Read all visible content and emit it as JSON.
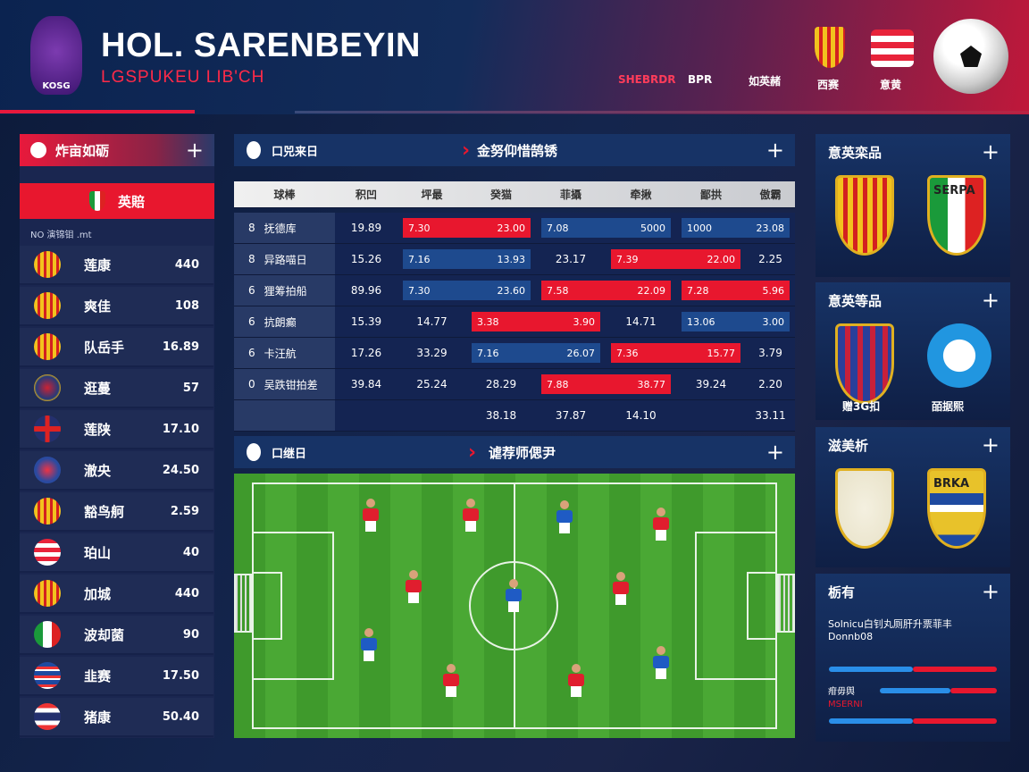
{
  "header": {
    "logo_text": "KOSG",
    "title": "HOL. SARENBEYIN",
    "subtitle": "LGSPUKEU LIB'CH",
    "nav": [
      "SHEBRDR",
      "BPR",
      "如英赭",
      "西赛",
      "意黄"
    ]
  },
  "left": {
    "title": "炸亩如砺",
    "subheader": "英賠",
    "section_label": "NO 演锦钼 .mt",
    "items": [
      {
        "name": "莲康",
        "value": "440",
        "icon": "crest-yellow"
      },
      {
        "name": "爽佳",
        "value": "108",
        "icon": "crest-yellow"
      },
      {
        "name": "队岳手",
        "value": "16.89",
        "icon": "crest-yellow"
      },
      {
        "name": "逛蔓",
        "value": "57",
        "icon": "crest-navy"
      },
      {
        "name": "莲陕",
        "value": "17.10",
        "icon": "flag-uk"
      },
      {
        "name": "澈央",
        "value": "24.50",
        "icon": "crest-blue"
      },
      {
        "name": "豁鸟舸",
        "value": "2.59",
        "icon": "crest-yellow"
      },
      {
        "name": "珀山",
        "value": "40",
        "icon": "flag-striped"
      },
      {
        "name": "加城",
        "value": "440",
        "icon": "crest-yellow"
      },
      {
        "name": "波却菌",
        "value": "90",
        "icon": "flag-italy"
      },
      {
        "name": "韭赛",
        "value": "17.50",
        "icon": "flag-blue"
      },
      {
        "name": "猪康",
        "value": "50.40",
        "icon": "flag-thai"
      }
    ]
  },
  "table_panel": {
    "left_label": "口兕来日",
    "title": "金努仰惜鹄锈",
    "columns": [
      "球棒",
      "积凹",
      "坪最",
      "癸猫",
      "菲攝",
      "牵揪",
      "鄙拱",
      "傲霸"
    ],
    "rows": [
      {
        "rank": "8",
        "name": "抚德库",
        "cells": [
          "19.89",
          {
            "bar": "red",
            "v": [
              "7.30",
              "23.00"
            ]
          },
          {
            "bar": "blue",
            "v": [
              "7.08",
              "5000"
            ]
          },
          {
            "bar": "blue",
            "v": [
              "1000",
              "23.08"
            ]
          }
        ]
      },
      {
        "rank": "8",
        "name": "异路喵日",
        "cells": [
          "15.26",
          {
            "bar": "blue",
            "v": [
              "7.16",
              "13.93"
            ]
          },
          "23.17",
          {
            "bar": "red",
            "v": [
              "7.39",
              "22.00"
            ]
          },
          "2.25"
        ]
      },
      {
        "rank": "6",
        "name": "狸筹拍船",
        "cells": [
          "89.96",
          {
            "bar": "blue",
            "v": [
              "7.30",
              "23.60"
            ]
          },
          {
            "bar": "red",
            "v": [
              "7.58",
              "22.09"
            ]
          },
          {
            "bar": "red",
            "v": [
              "7.28",
              "5.96"
            ]
          }
        ]
      },
      {
        "rank": "6",
        "name": "抗朗癫",
        "cells": [
          "15.39",
          "14.77",
          {
            "bar": "red",
            "v": [
              "3.38",
              "3.90"
            ]
          },
          "14.71",
          {
            "bar": "blue",
            "v": [
              "13.06",
              "3.00"
            ]
          }
        ]
      },
      {
        "rank": "6",
        "name": "卡汪航",
        "cells": [
          "17.26",
          "33.29",
          {
            "bar": "blue",
            "v": [
              "7.16",
              "26.07"
            ]
          },
          {
            "bar": "red",
            "v": [
              "7.36",
              "15.77"
            ]
          },
          "3.79"
        ]
      },
      {
        "rank": "0",
        "name": "吴跌钳拍差",
        "cells": [
          "39.84",
          "25.24",
          "28.29",
          {
            "bar": "red",
            "v": [
              "7.88",
              "38.77"
            ]
          },
          "39.24",
          "2.20"
        ]
      },
      {
        "rank": "",
        "name": "",
        "cells": [
          "",
          "",
          "38.18",
          "37.87",
          "14.10",
          "",
          "33.11"
        ]
      }
    ]
  },
  "pitch_panel": {
    "left_label": "口继日",
    "title": "谑荐师偲尹",
    "team_colors": {
      "home": "#e01e2e",
      "away": "#1f5bc4"
    }
  },
  "right": {
    "panels": [
      {
        "title": "意英栾品",
        "badges": [
          {
            "label": ""
          },
          {
            "label": "SERPA"
          }
        ]
      },
      {
        "title": "意英等品",
        "badges": [
          {
            "label": "赠3G扣"
          },
          {
            "label": "皕据熙"
          }
        ]
      },
      {
        "title": "滋美析",
        "badges": [
          {
            "label": ""
          },
          {
            "label": "BRKA"
          }
        ]
      }
    ],
    "stats": {
      "title": "栃有",
      "text1": "Solnicu白钊丸厕肝升票菲丰",
      "text2": "Donnb08",
      "label1": "疳毋舆",
      "label2": "MSERNI",
      "bars": [
        {
          "left": 0.5
        },
        {
          "left": 0.6
        },
        {
          "left": 0.5
        }
      ]
    }
  }
}
